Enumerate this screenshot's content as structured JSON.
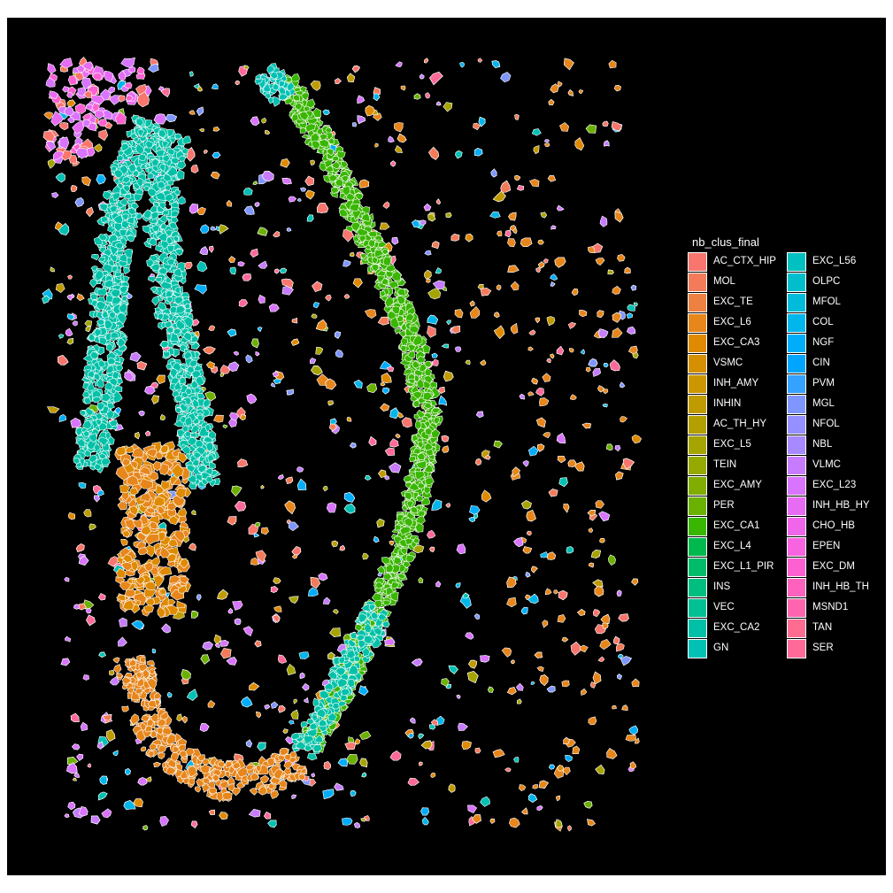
{
  "chart_data": {
    "type": "scatter",
    "subtype": "spatial cell segmentation map (polygons colored by cluster)",
    "title": "",
    "xlabel": "",
    "ylabel": "",
    "background": "#000000",
    "axes_visible": false,
    "grid": false,
    "legend_placement": "right",
    "legend": {
      "title": "nb_clus_final",
      "columns": 2,
      "entries": [
        {
          "label": "AC_CTX_HIP",
          "color": "#F8766D"
        },
        {
          "label": "MOL",
          "color": "#F37B59"
        },
        {
          "label": "EXC_TE",
          "color": "#ED8141"
        },
        {
          "label": "EXC_L6",
          "color": "#E7861B"
        },
        {
          "label": "EXC_CA3",
          "color": "#DF8A00"
        },
        {
          "label": "VSMC",
          "color": "#D58F00"
        },
        {
          "label": "INH_AMY",
          "color": "#CC9600"
        },
        {
          "label": "INHIN",
          "color": "#C09B00"
        },
        {
          "label": "AC_TH_HY",
          "color": "#B3A000"
        },
        {
          "label": "EXC_L5",
          "color": "#A5A400"
        },
        {
          "label": "TEIN",
          "color": "#95A900"
        },
        {
          "label": "EXC_AMY",
          "color": "#81AD00"
        },
        {
          "label": "PER",
          "color": "#6BB100"
        },
        {
          "label": "EXC_CA1",
          "color": "#39B600"
        },
        {
          "label": "EXC_L4",
          "color": "#00B94E"
        },
        {
          "label": "EXC_L1_PIR",
          "color": "#00BC6A"
        },
        {
          "label": "INS",
          "color": "#00BE80"
        },
        {
          "label": "VEC",
          "color": "#00C094"
        },
        {
          "label": "EXC_CA2",
          "color": "#00C1A7"
        },
        {
          "label": "GN",
          "color": "#00C1B4"
        },
        {
          "label": "EXC_L56",
          "color": "#00C0C0"
        },
        {
          "label": "OLPC",
          "color": "#00BECC"
        },
        {
          "label": "MFOL",
          "color": "#00BBDA"
        },
        {
          "label": "COL",
          "color": "#00B6EB"
        },
        {
          "label": "NGF",
          "color": "#00ADFA"
        },
        {
          "label": "CIN",
          "color": "#00A5FF"
        },
        {
          "label": "PVM",
          "color": "#35A2FF"
        },
        {
          "label": "MGL",
          "color": "#7F96FF"
        },
        {
          "label": "NFOL",
          "color": "#9590FF"
        },
        {
          "label": "NBL",
          "color": "#A78AFF"
        },
        {
          "label": "VLMC",
          "color": "#C77CFF"
        },
        {
          "label": "EXC_L23",
          "color": "#D874FD"
        },
        {
          "label": "INH_HB_HY",
          "color": "#E76BF3"
        },
        {
          "label": "CHO_HB",
          "color": "#F066EA"
        },
        {
          "label": "EPEN",
          "color": "#F863DF"
        },
        {
          "label": "EXC_DM",
          "color": "#FD61D1"
        },
        {
          "label": "INH_HB_TH",
          "color": "#FF62BC"
        },
        {
          "label": "MSND1",
          "color": "#FF65AE"
        },
        {
          "label": "TAN",
          "color": "#FF6C91"
        },
        {
          "label": "SER",
          "color": "#FF6A98"
        }
      ]
    },
    "regions": [
      {
        "cluster": "EXC_CA2",
        "description": "two parallel dense cell bands on the left"
      },
      {
        "cluster": "EXC_CA1",
        "description": "dense curved band through the centre"
      },
      {
        "cluster": "EXC_L6",
        "description": "dense cluster at lower left and bottom arc"
      },
      {
        "cluster": "AC_CTX_HIP",
        "description": "scattered cells throughout"
      }
    ]
  }
}
